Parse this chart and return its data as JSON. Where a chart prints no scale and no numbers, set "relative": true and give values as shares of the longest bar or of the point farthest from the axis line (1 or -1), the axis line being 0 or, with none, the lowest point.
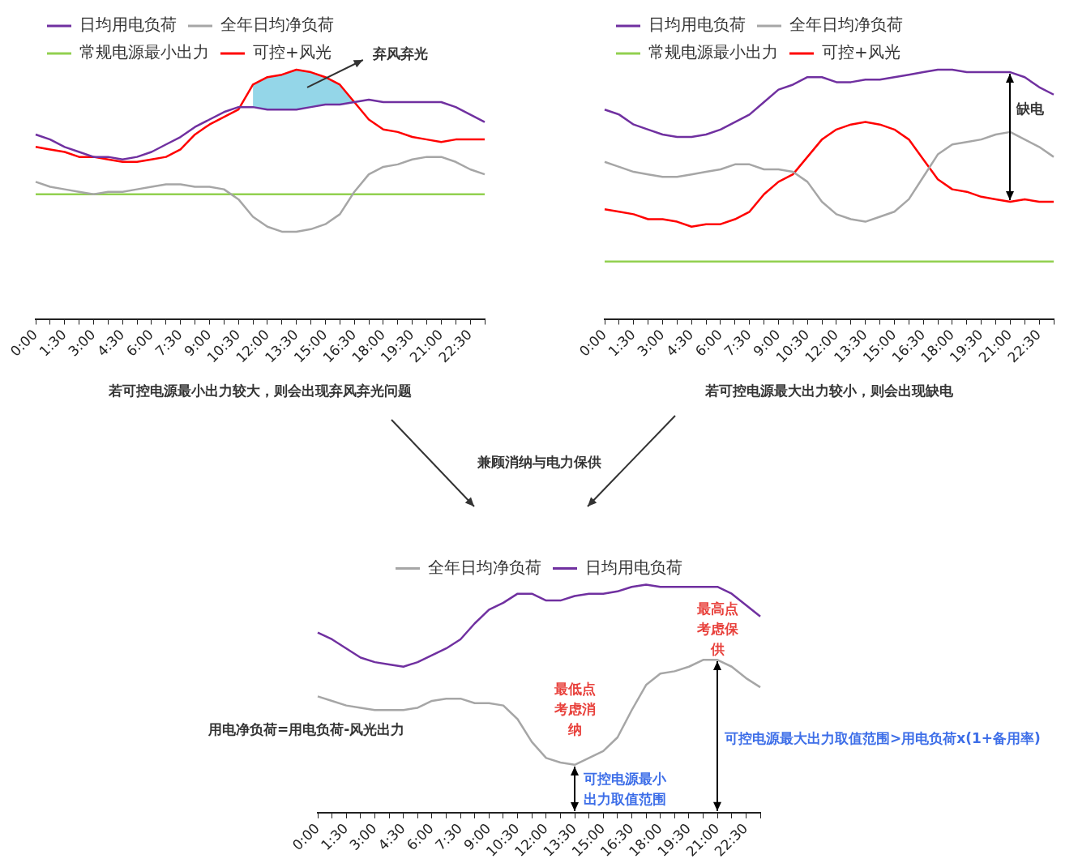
{
  "chart_data": [
    {
      "type": "line",
      "xlabel": "若可控电源最小出力较大，则会出现弃风弃光问题",
      "relative": true,
      "legend": "top left",
      "marker": "none",
      "annotations": [
        "弃风弃光"
      ],
      "categories": [
        "0:00",
        null,
        "1:30",
        null,
        "3:00",
        null,
        "4:30",
        null,
        "6:00",
        null,
        "7:30",
        null,
        "9:00",
        null,
        "10:30",
        null,
        "12:00",
        null,
        "13:30",
        null,
        "15:00",
        null,
        "16:30",
        null,
        "18:00",
        null,
        "19:30",
        null,
        "21:00",
        null,
        "22:30",
        null
      ],
      "series": [
        {
          "name": "日均用电负荷",
          "color": "#7030a0",
          "values": [
            0.74,
            0.72,
            0.69,
            0.67,
            0.65,
            0.65,
            0.64,
            0.65,
            0.67,
            0.7,
            0.73,
            0.77,
            0.8,
            0.83,
            0.85,
            0.85,
            0.84,
            0.84,
            0.84,
            0.85,
            0.86,
            0.86,
            0.87,
            0.88,
            0.87,
            0.87,
            0.87,
            0.87,
            0.87,
            0.85,
            0.82,
            0.79
          ]
        },
        {
          "name": "全年日均净负荷",
          "color": "#a6a6a6",
          "values": [
            0.55,
            0.53,
            0.52,
            0.51,
            0.5,
            0.51,
            0.51,
            0.52,
            0.53,
            0.54,
            0.54,
            0.53,
            0.53,
            0.52,
            0.48,
            0.41,
            0.37,
            0.35,
            0.35,
            0.36,
            0.38,
            0.42,
            0.51,
            0.58,
            0.61,
            0.62,
            0.64,
            0.65,
            0.65,
            0.63,
            0.6,
            0.58
          ]
        },
        {
          "name": "常规电源最小出力",
          "color": "#92d050",
          "values": [
            0.5,
            0.5,
            0.5,
            0.5,
            0.5,
            0.5,
            0.5,
            0.5,
            0.5,
            0.5,
            0.5,
            0.5,
            0.5,
            0.5,
            0.5,
            0.5,
            0.5,
            0.5,
            0.5,
            0.5,
            0.5,
            0.5,
            0.5,
            0.5,
            0.5,
            0.5,
            0.5,
            0.5,
            0.5,
            0.5,
            0.5,
            0.5
          ]
        },
        {
          "name": "可控+风光",
          "color": "#ff0000",
          "values": [
            0.69,
            0.68,
            0.67,
            0.65,
            0.65,
            0.64,
            0.63,
            0.63,
            0.64,
            0.65,
            0.68,
            0.74,
            0.78,
            0.81,
            0.84,
            0.94,
            0.97,
            0.98,
            1.0,
            0.99,
            0.97,
            0.94,
            0.87,
            0.8,
            0.76,
            0.75,
            0.73,
            0.72,
            0.71,
            0.72,
            0.72,
            0.72
          ],
          "lower": [
            null,
            null,
            null,
            null,
            null,
            null,
            null,
            null,
            null,
            null,
            null,
            null,
            null,
            null,
            null,
            0.85,
            0.84,
            0.84,
            0.84,
            0.85,
            0.86,
            0.86,
            0.87,
            null,
            null,
            null,
            null,
            null,
            null,
            null,
            null,
            null
          ],
          "upper": [
            null,
            null,
            null,
            null,
            null,
            null,
            null,
            null,
            null,
            null,
            null,
            null,
            null,
            null,
            null,
            0.94,
            0.97,
            0.98,
            1.0,
            0.99,
            0.97,
            0.94,
            0.87,
            null,
            null,
            null,
            null,
            null,
            null,
            null,
            null,
            null
          ]
        }
      ]
    },
    {
      "type": "line",
      "xlabel": "若可控电源最大出力较小，则会出现缺电",
      "relative": true,
      "legend": "top left",
      "marker": "none",
      "annotations": [
        "缺电"
      ],
      "categories": [
        "0:00",
        null,
        "1:30",
        null,
        "3:00",
        null,
        "4:30",
        null,
        "6:00",
        null,
        "7:30",
        null,
        "9:00",
        null,
        "10:30",
        null,
        "12:00",
        null,
        "13:30",
        null,
        "15:00",
        null,
        "16:30",
        null,
        "18:00",
        null,
        "19:30",
        null,
        "21:00",
        null,
        "22:30",
        null
      ],
      "series": [
        {
          "name": "日均用电负荷",
          "color": "#7030a0",
          "values": [
            0.84,
            0.82,
            0.78,
            0.76,
            0.74,
            0.73,
            0.73,
            0.74,
            0.76,
            0.79,
            0.82,
            0.87,
            0.92,
            0.94,
            0.97,
            0.97,
            0.95,
            0.95,
            0.96,
            0.96,
            0.97,
            0.98,
            0.99,
            1.0,
            1.0,
            0.99,
            0.99,
            0.99,
            0.99,
            0.97,
            0.93,
            0.9
          ]
        },
        {
          "name": "全年日均净负荷",
          "color": "#a6a6a6",
          "values": [
            0.63,
            0.61,
            0.59,
            0.58,
            0.57,
            0.57,
            0.58,
            0.59,
            0.6,
            0.62,
            0.62,
            0.6,
            0.6,
            0.59,
            0.55,
            0.47,
            0.42,
            0.4,
            0.39,
            0.41,
            0.43,
            0.48,
            0.57,
            0.66,
            0.7,
            0.71,
            0.72,
            0.74,
            0.75,
            0.72,
            0.69,
            0.65
          ]
        },
        {
          "name": "常规电源最小出力",
          "color": "#92d050",
          "values": [
            0.23,
            0.23,
            0.23,
            0.23,
            0.23,
            0.23,
            0.23,
            0.23,
            0.23,
            0.23,
            0.23,
            0.23,
            0.23,
            0.23,
            0.23,
            0.23,
            0.23,
            0.23,
            0.23,
            0.23,
            0.23,
            0.23,
            0.23,
            0.23,
            0.23,
            0.23,
            0.23,
            0.23,
            0.23,
            0.23,
            0.23,
            0.23
          ]
        },
        {
          "name": "可控+风光",
          "color": "#ff0000",
          "values": [
            0.44,
            0.43,
            0.42,
            0.4,
            0.4,
            0.39,
            0.37,
            0.38,
            0.38,
            0.4,
            0.43,
            0.5,
            0.55,
            0.58,
            0.65,
            0.72,
            0.76,
            0.78,
            0.79,
            0.78,
            0.76,
            0.72,
            0.64,
            0.56,
            0.52,
            0.51,
            0.49,
            0.48,
            0.47,
            0.48,
            0.47,
            0.47
          ]
        }
      ]
    },
    {
      "type": "line",
      "title": "兼顾消纳与电力保供",
      "relative": true,
      "legend": "top",
      "marker": "none",
      "annotations": [
        "最高点考虑保供",
        "最低点考虑消纳",
        "可控电源最小出力取值范围",
        "可控电源最大出力取值范围>用电负荷x(1+备用率)",
        "用电净负荷=用电负荷-风光出力"
      ],
      "categories": [
        "0:00",
        null,
        "1:30",
        null,
        "3:00",
        null,
        "4:30",
        null,
        "6:00",
        null,
        "7:30",
        null,
        "9:00",
        null,
        "10:30",
        null,
        "12:00",
        null,
        "13:30",
        null,
        "15:00",
        null,
        "16:30",
        null,
        "18:00",
        null,
        "19:30",
        null,
        "21:00",
        null,
        "22:30",
        null
      ],
      "series": [
        {
          "name": "全年日均净负荷",
          "color": "#a6a6a6",
          "values": [
            0.51,
            0.49,
            0.47,
            0.46,
            0.45,
            0.45,
            0.45,
            0.46,
            0.49,
            0.5,
            0.5,
            0.48,
            0.48,
            0.47,
            0.41,
            0.31,
            0.24,
            0.22,
            0.21,
            0.24,
            0.27,
            0.33,
            0.45,
            0.56,
            0.61,
            0.62,
            0.64,
            0.67,
            0.67,
            0.64,
            0.59,
            0.55
          ]
        },
        {
          "name": "日均用电负荷",
          "color": "#7030a0",
          "values": [
            0.79,
            0.76,
            0.72,
            0.68,
            0.66,
            0.65,
            0.64,
            0.66,
            0.69,
            0.72,
            0.76,
            0.83,
            0.89,
            0.92,
            0.96,
            0.96,
            0.93,
            0.93,
            0.95,
            0.96,
            0.96,
            0.97,
            0.99,
            1.0,
            0.99,
            0.99,
            0.99,
            0.99,
            0.99,
            0.96,
            0.91,
            0.86
          ]
        }
      ]
    }
  ]
}
